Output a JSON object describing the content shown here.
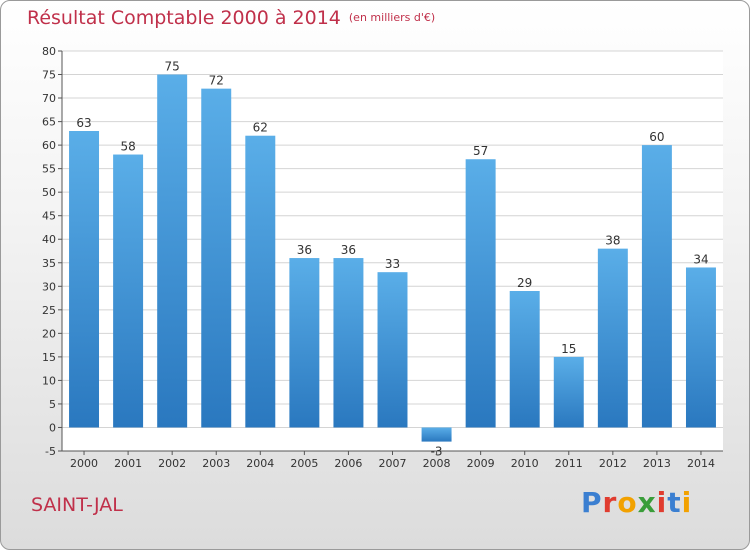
{
  "chart_data": {
    "type": "bar",
    "title": "Résultat Comptable 2000 à 2014",
    "subtitle": "(en milliers d'€)",
    "categories": [
      "2000",
      "2001",
      "2002",
      "2003",
      "2004",
      "2005",
      "2006",
      "2007",
      "2008",
      "2009",
      "2010",
      "2011",
      "2012",
      "2013",
      "2014"
    ],
    "values": [
      63,
      58,
      75,
      72,
      62,
      36,
      36,
      33,
      -3,
      57,
      29,
      15,
      38,
      60,
      34
    ],
    "ylim": [
      -5,
      80
    ],
    "yticks": [
      -5,
      0,
      5,
      10,
      15,
      20,
      25,
      30,
      35,
      40,
      45,
      50,
      55,
      60,
      65,
      70,
      75,
      80
    ],
    "xlabel": "",
    "ylabel": "",
    "grid": true,
    "bar_color": "#3d8fd6",
    "title_color": "#c0304a"
  },
  "commune": "SAINT-JAL",
  "brand": {
    "letters": [
      "P",
      "r",
      "o",
      "x",
      "i",
      "t",
      "i"
    ],
    "colors": [
      "#3b7fd1",
      "#e03c2f",
      "#f2a100",
      "#3a9d3a",
      "#e03c2f",
      "#3b7fd1",
      "#f2a100"
    ]
  }
}
